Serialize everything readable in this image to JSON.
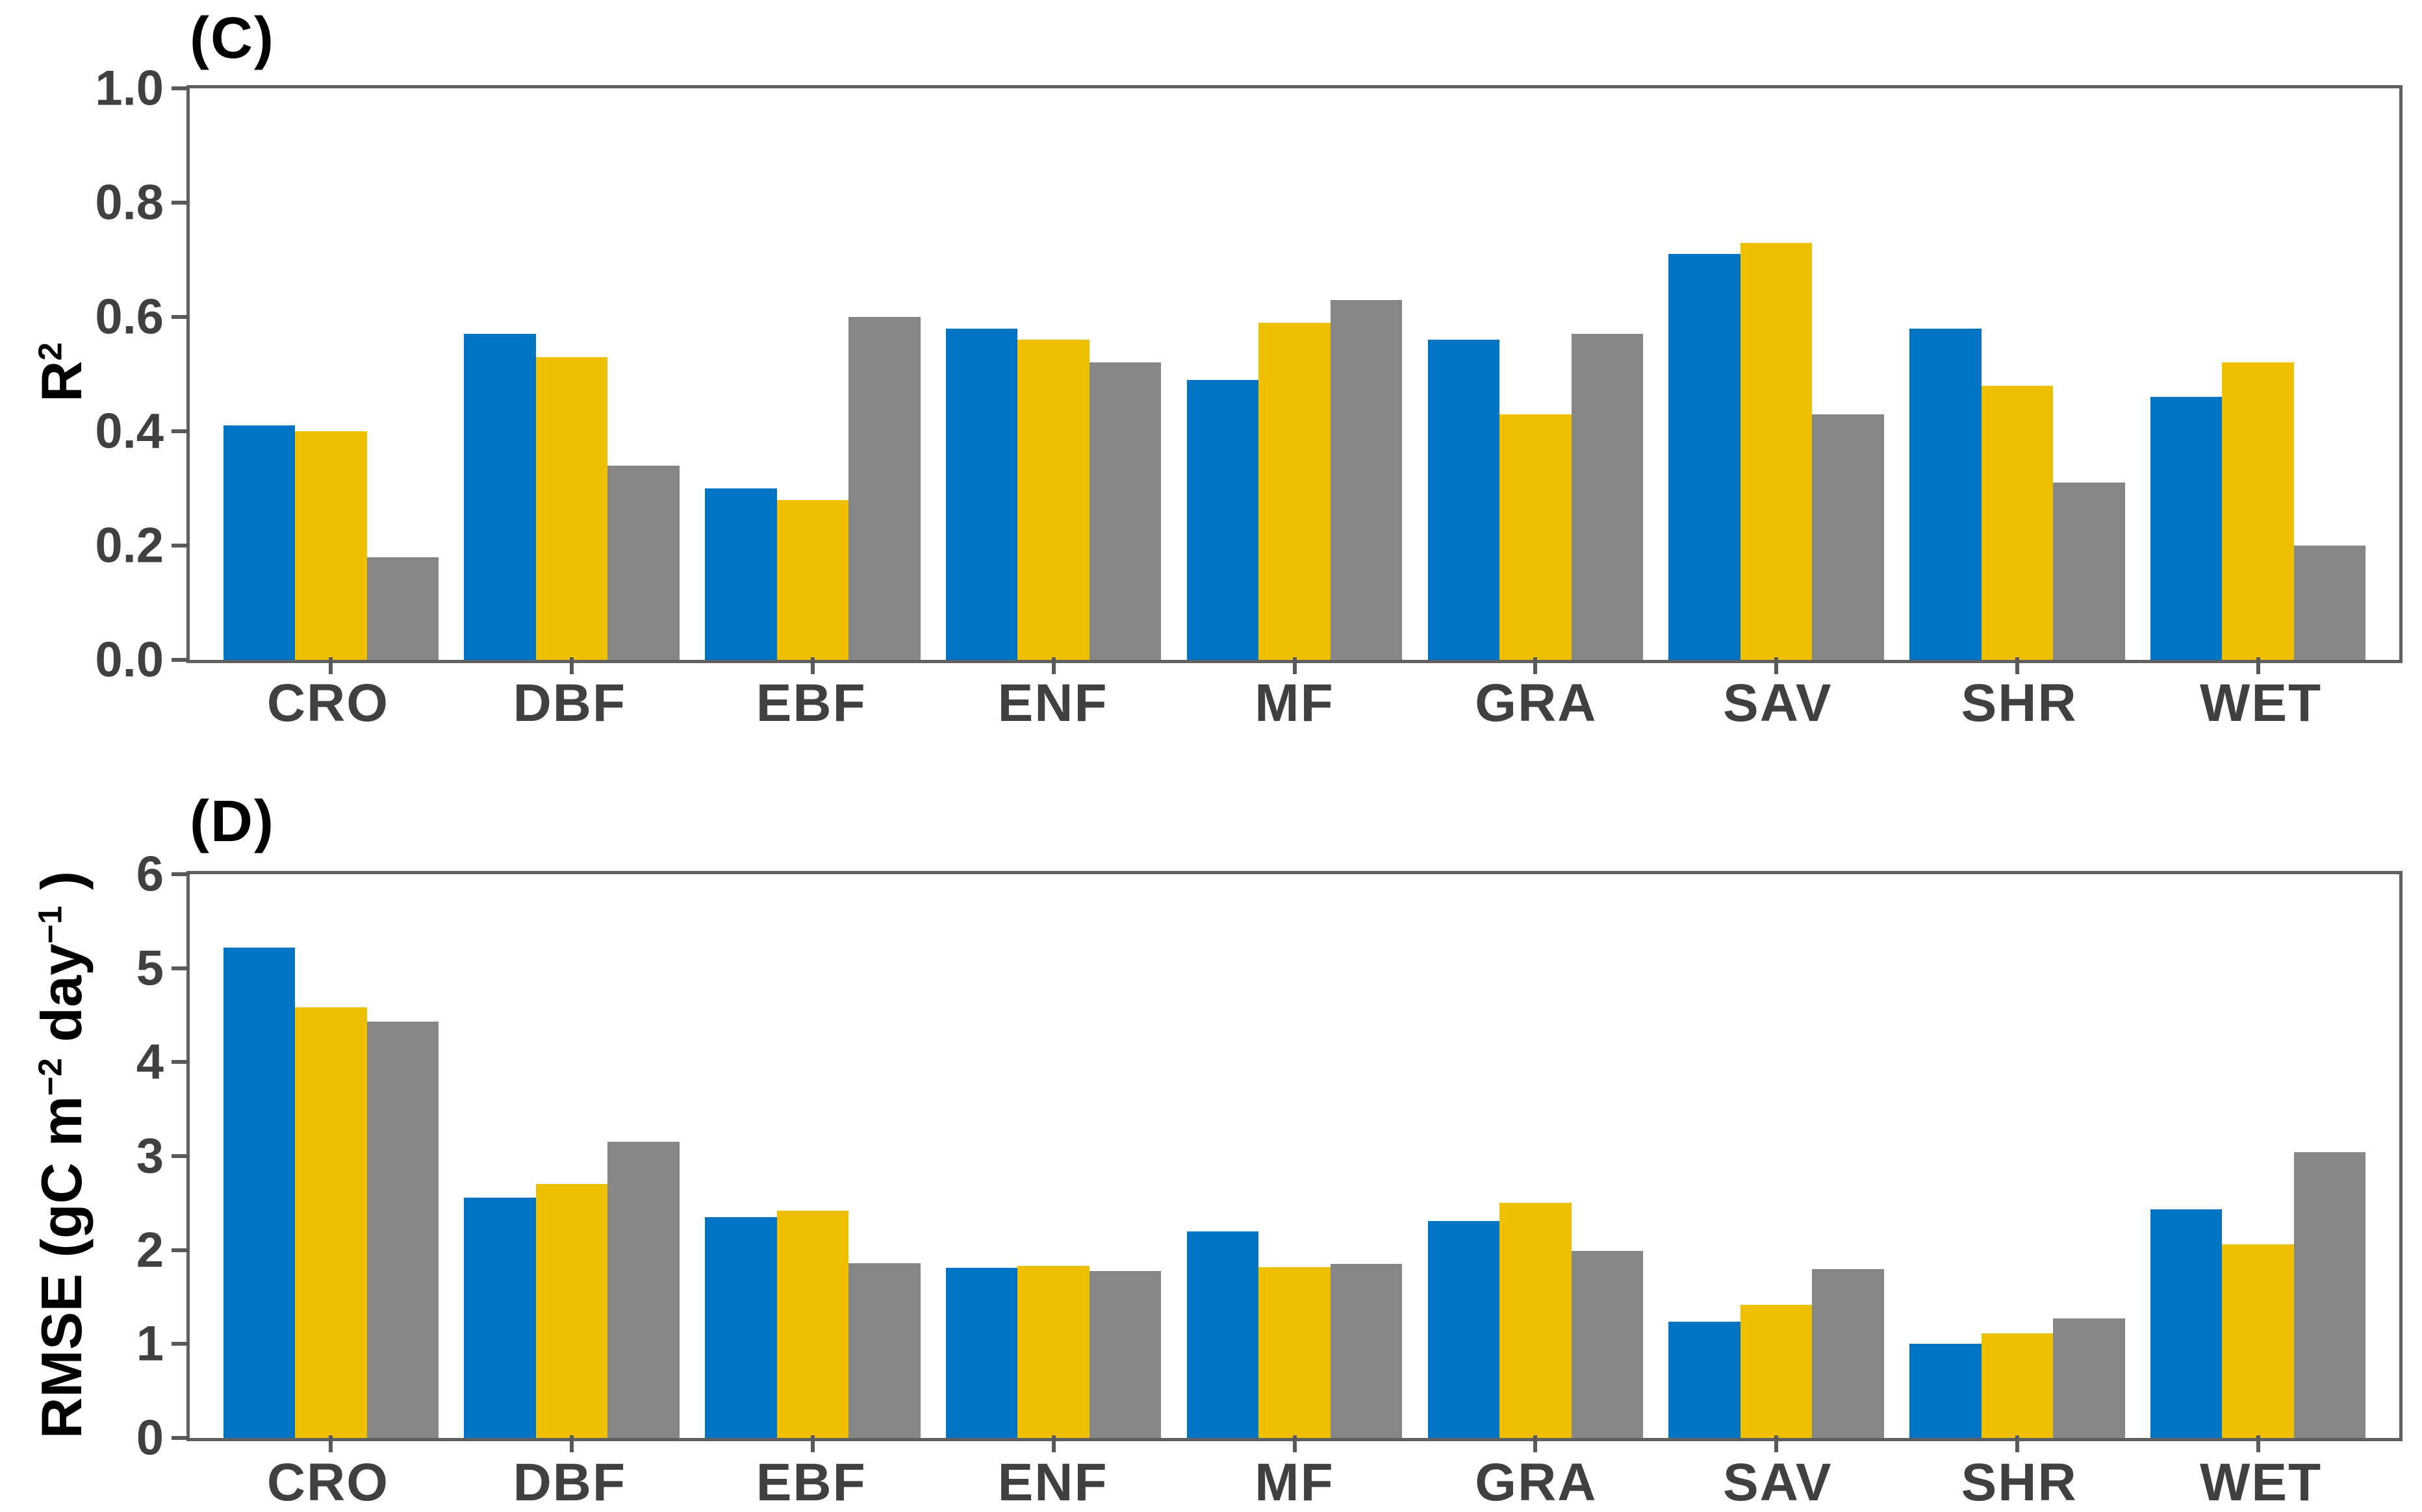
{
  "figure": {
    "background": "#ffffff"
  },
  "colors": {
    "series_blue": "#0073C2",
    "series_yellow": "#EFC000",
    "series_gray": "#868686",
    "axis_line": "#606060",
    "tick_mark": "#595959",
    "tick_text": "#404040",
    "label_text": "#000000"
  },
  "chart_data": [
    {
      "type": "bar",
      "panel_tag": "(C)",
      "title": "",
      "xlabel": "",
      "ylabel": "R²",
      "ylabel_parts": [
        {
          "t": "R"
        },
        {
          "t": "2",
          "sup": true
        }
      ],
      "categories": [
        "CRO",
        "DBF",
        "EBF",
        "ENF",
        "MF",
        "GRA",
        "SAV",
        "SHR",
        "WET"
      ],
      "series": [
        {
          "name": "blue",
          "color": "#0073C2",
          "values": [
            0.41,
            0.57,
            0.3,
            0.58,
            0.49,
            0.56,
            0.71,
            0.58,
            0.46
          ]
        },
        {
          "name": "yellow",
          "color": "#EFC000",
          "values": [
            0.4,
            0.53,
            0.28,
            0.56,
            0.59,
            0.43,
            0.73,
            0.48,
            0.52
          ]
        },
        {
          "name": "gray",
          "color": "#868686",
          "values": [
            0.18,
            0.34,
            0.6,
            0.52,
            0.63,
            0.57,
            0.43,
            0.31,
            0.2
          ]
        }
      ],
      "ylim": [
        0,
        1.0
      ],
      "yticks": [
        {
          "label": "0.0",
          "value": 0.0
        },
        {
          "label": "0.2",
          "value": 0.2
        },
        {
          "label": "0.4",
          "value": 0.4
        },
        {
          "label": "0.6",
          "value": 0.6
        },
        {
          "label": "0.8",
          "value": 0.8
        },
        {
          "label": "1.0",
          "value": 1.0
        }
      ],
      "grid": false,
      "legend": "none"
    },
    {
      "type": "bar",
      "panel_tag": "(D)",
      "title": "",
      "xlabel": "",
      "ylabel": "RMSE (gC m⁻² day⁻¹)",
      "ylabel_parts": [
        {
          "t": "RMSE (gC m"
        },
        {
          "t": "−2",
          "sup": true
        },
        {
          "t": " day"
        },
        {
          "t": "−1",
          "sup": true
        },
        {
          "t": " )"
        }
      ],
      "categories": [
        "CRO",
        "DBF",
        "EBF",
        "ENF",
        "MF",
        "GRA",
        "SAV",
        "SHR",
        "WET"
      ],
      "series": [
        {
          "name": "blue",
          "color": "#0073C2",
          "values": [
            5.22,
            2.56,
            2.35,
            1.81,
            2.2,
            2.31,
            1.24,
            1.0,
            2.43
          ]
        },
        {
          "name": "yellow",
          "color": "#EFC000",
          "values": [
            4.58,
            2.7,
            2.42,
            1.83,
            1.82,
            2.5,
            1.42,
            1.11,
            2.06
          ]
        },
        {
          "name": "gray",
          "color": "#868686",
          "values": [
            4.43,
            3.15,
            1.86,
            1.78,
            1.85,
            1.99,
            1.8,
            1.27,
            3.04
          ]
        }
      ],
      "ylim": [
        0,
        6
      ],
      "yticks": [
        {
          "label": "0",
          "value": 0
        },
        {
          "label": "1",
          "value": 1
        },
        {
          "label": "2",
          "value": 2
        },
        {
          "label": "3",
          "value": 3
        },
        {
          "label": "4",
          "value": 4
        },
        {
          "label": "5",
          "value": 5
        },
        {
          "label": "6",
          "value": 6
        }
      ],
      "grid": false,
      "legend": "none"
    }
  ]
}
